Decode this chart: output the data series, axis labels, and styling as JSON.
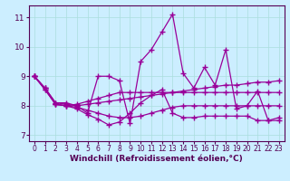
{
  "xlabel": "Windchill (Refroidissement éolien,°C)",
  "bg_color": "#cceeff",
  "line_color": "#990099",
  "xlim": [
    -0.5,
    23.5
  ],
  "ylim": [
    6.8,
    11.4
  ],
  "xticks": [
    0,
    1,
    2,
    3,
    4,
    5,
    6,
    7,
    8,
    9,
    10,
    11,
    12,
    13,
    14,
    15,
    16,
    17,
    18,
    19,
    20,
    21,
    22,
    23
  ],
  "yticks": [
    7,
    8,
    9,
    10,
    11
  ],
  "series": [
    [
      9.0,
      8.6,
      8.1,
      8.1,
      8.0,
      7.75,
      9.0,
      9.0,
      8.85,
      7.4,
      9.5,
      9.9,
      10.5,
      11.1,
      9.1,
      8.6,
      9.3,
      8.7,
      9.9,
      7.9,
      8.0,
      8.5,
      7.5,
      7.6
    ],
    [
      9.0,
      8.6,
      8.1,
      8.05,
      8.0,
      8.05,
      8.1,
      8.15,
      8.2,
      8.25,
      8.3,
      8.35,
      8.4,
      8.45,
      8.5,
      8.55,
      8.6,
      8.65,
      8.7,
      8.7,
      8.75,
      8.8,
      8.8,
      8.85
    ],
    [
      9.0,
      8.6,
      8.05,
      8.0,
      7.9,
      7.7,
      7.55,
      7.35,
      7.45,
      7.75,
      8.1,
      8.35,
      8.55,
      7.75,
      7.6,
      7.6,
      7.65,
      7.65,
      7.65,
      7.65,
      7.65,
      7.5,
      7.5,
      7.5
    ],
    [
      9.0,
      8.55,
      8.05,
      8.0,
      8.05,
      8.15,
      8.25,
      8.35,
      8.45,
      8.45,
      8.45,
      8.45,
      8.45,
      8.45,
      8.45,
      8.45,
      8.45,
      8.45,
      8.45,
      8.45,
      8.45,
      8.45,
      8.45,
      8.45
    ],
    [
      9.0,
      8.55,
      8.05,
      8.0,
      7.95,
      7.85,
      7.75,
      7.65,
      7.6,
      7.6,
      7.65,
      7.75,
      7.85,
      7.95,
      8.0,
      8.0,
      8.0,
      8.0,
      8.0,
      8.0,
      8.0,
      8.0,
      8.0,
      8.0
    ]
  ]
}
